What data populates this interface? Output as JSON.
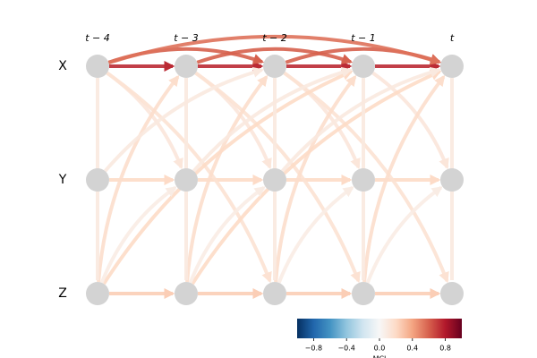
{
  "time_labels": [
    "t − 4",
    "t − 3",
    "t − 2",
    "t − 1",
    "t"
  ],
  "variables": [
    "X",
    "Y",
    "Z"
  ],
  "links": [
    {
      "from": 0,
      "to": 0,
      "lag": 1,
      "value": 0.75
    },
    {
      "from": 0,
      "to": 0,
      "lag": 2,
      "value": 0.6
    },
    {
      "from": 0,
      "to": 0,
      "lag": 4,
      "value": 0.55
    },
    {
      "from": 1,
      "to": 1,
      "lag": 1,
      "value": 0.2
    },
    {
      "from": 2,
      "to": 2,
      "lag": 1,
      "value": 0.25
    },
    {
      "from": 0,
      "to": 1,
      "lag": 1,
      "value": 0.12
    },
    {
      "from": 0,
      "to": 2,
      "lag": 2,
      "value": 0.15
    },
    {
      "from": 2,
      "to": 0,
      "lag": 1,
      "value": 0.18
    },
    {
      "from": 2,
      "to": 0,
      "lag": 3,
      "value": 0.2
    },
    {
      "from": 1,
      "to": 0,
      "lag": 2,
      "value": 0.1
    },
    {
      "from": 2,
      "to": 1,
      "lag": 1,
      "value": 0.08
    },
    {
      "from": 0,
      "to": 2,
      "lag": 0,
      "value": 0.1
    }
  ],
  "colorbar": {
    "label": "MCI",
    "clim": [
      -1,
      1
    ],
    "ticks": [
      {
        "value": -0.8,
        "label": "−0.8"
      },
      {
        "value": -0.4,
        "label": "−0.4"
      },
      {
        "value": 0,
        "label": "0.0"
      },
      0.4,
      0.8
    ]
  }
}
